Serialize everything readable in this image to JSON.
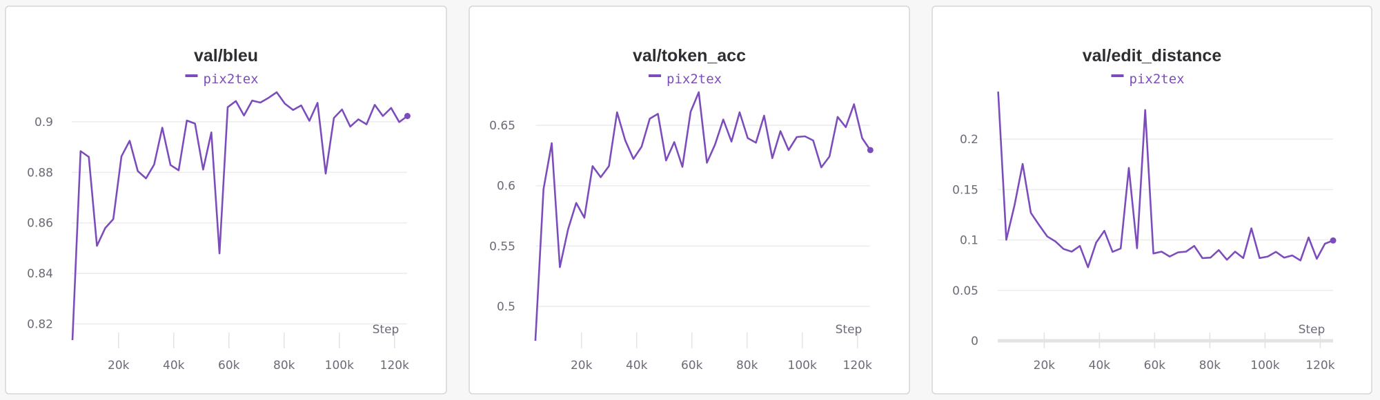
{
  "colors": {
    "series": "#7d4cbc",
    "background": "#f7f7f7",
    "panel": "#ffffff"
  },
  "chart_data": [
    {
      "type": "line",
      "title": "val/bleu",
      "xlabel": "Step",
      "ylabel": "",
      "legend": {
        "placement": "top-center",
        "entries": [
          "pix2tex"
        ]
      },
      "grid": true,
      "xlim": [
        3300,
        124660
      ],
      "ylim": [
        0.8136,
        0.9117
      ],
      "xticks": [
        20000,
        40000,
        60000,
        80000,
        100000,
        120000
      ],
      "xtick_labels": [
        "20k",
        "40k",
        "60k",
        "80k",
        "100k",
        "120k"
      ],
      "yticks": [
        0.82,
        0.84,
        0.86,
        0.88,
        0.9
      ],
      "ytick_labels": [
        "0.82",
        "0.84",
        "0.86",
        "0.88",
        "0.9"
      ],
      "series": [
        {
          "name": "pix2tex",
          "x": [
            3300,
            6260,
            9220,
            12180,
            15140,
            18100,
            21060,
            24020,
            26980,
            29940,
            32900,
            35860,
            38820,
            41780,
            44740,
            47700,
            50660,
            53620,
            56580,
            59540,
            62500,
            65460,
            68420,
            71380,
            74340,
            77300,
            80260,
            83220,
            86180,
            89140,
            92100,
            95060,
            98020,
            100980,
            103940,
            106900,
            109860,
            112820,
            115780,
            118740,
            121700,
            124660
          ],
          "y": [
            0.8136,
            0.8884,
            0.8861,
            0.8509,
            0.8579,
            0.8615,
            0.8863,
            0.8925,
            0.8805,
            0.8776,
            0.8831,
            0.8977,
            0.8829,
            0.8808,
            0.9005,
            0.8993,
            0.8811,
            0.8958,
            0.8479,
            0.9058,
            0.9082,
            0.9025,
            0.9084,
            0.9076,
            0.9095,
            0.9117,
            0.9072,
            0.9047,
            0.9065,
            0.9004,
            0.9075,
            0.8795,
            0.9015,
            0.9049,
            0.8981,
            0.901,
            0.899,
            0.9067,
            0.9023,
            0.9055,
            0.8999,
            0.9023
          ]
        }
      ]
    },
    {
      "type": "line",
      "title": "val/token_acc",
      "xlabel": "Step",
      "ylabel": "",
      "legend": {
        "placement": "top-center",
        "entries": [
          "pix2tex"
        ]
      },
      "grid": true,
      "xlim": [
        3300,
        124660
      ],
      "ylim": [
        0.4715,
        0.6774
      ],
      "xticks": [
        20000,
        40000,
        60000,
        80000,
        100000,
        120000
      ],
      "xtick_labels": [
        "20k",
        "40k",
        "60k",
        "80k",
        "100k",
        "120k"
      ],
      "yticks": [
        0.5,
        0.55,
        0.6,
        0.65
      ],
      "ytick_labels": [
        "0.5",
        "0.55",
        "0.6",
        "0.65"
      ],
      "series": [
        {
          "name": "pix2tex",
          "x": [
            3300,
            6260,
            9220,
            12180,
            15140,
            18100,
            21060,
            24020,
            26980,
            29940,
            32900,
            35860,
            38820,
            41780,
            44740,
            47700,
            50660,
            53620,
            56580,
            59540,
            62500,
            65460,
            68420,
            71380,
            74340,
            77300,
            80260,
            83220,
            86180,
            89140,
            92100,
            95060,
            98020,
            100980,
            103940,
            106900,
            109860,
            112820,
            115780,
            118740,
            121700,
            124660
          ],
          "y": [
            0.4715,
            0.5971,
            0.6352,
            0.5325,
            0.5639,
            0.5857,
            0.5734,
            0.6162,
            0.607,
            0.6162,
            0.6608,
            0.6376,
            0.6222,
            0.6323,
            0.6555,
            0.6595,
            0.6209,
            0.6361,
            0.6156,
            0.6612,
            0.6774,
            0.619,
            0.6342,
            0.6548,
            0.6365,
            0.6608,
            0.6394,
            0.6356,
            0.658,
            0.6228,
            0.6452,
            0.6295,
            0.6403,
            0.6409,
            0.6375,
            0.6152,
            0.6241,
            0.657,
            0.6485,
            0.6675,
            0.6394,
            0.6295
          ]
        }
      ]
    },
    {
      "type": "line",
      "title": "val/edit_distance",
      "xlabel": "Step",
      "ylabel": "",
      "legend": {
        "placement": "top-center",
        "entries": [
          "pix2tex"
        ]
      },
      "grid": true,
      "xlim": [
        3300,
        124660
      ],
      "ylim": [
        0,
        0.2472
      ],
      "xticks": [
        20000,
        40000,
        60000,
        80000,
        100000,
        120000
      ],
      "xtick_labels": [
        "20k",
        "40k",
        "60k",
        "80k",
        "100k",
        "120k"
      ],
      "yticks": [
        0,
        0.05,
        0.1,
        0.15,
        0.2
      ],
      "ytick_labels": [
        "0",
        "0.05",
        "0.1",
        "0.15",
        "0.2"
      ],
      "series": [
        {
          "name": "pix2tex",
          "x": [
            3300,
            6260,
            9220,
            12180,
            15140,
            18100,
            21060,
            24020,
            26980,
            29940,
            32900,
            35860,
            38820,
            41780,
            44740,
            47700,
            50660,
            53620,
            56580,
            59540,
            62500,
            65460,
            68420,
            71380,
            74340,
            77300,
            80260,
            83220,
            86180,
            89140,
            92100,
            95060,
            98020,
            100980,
            103940,
            106900,
            109860,
            112820,
            115780,
            118740,
            121700,
            124660
          ],
          "y": [
            0.2472,
            0.1002,
            0.1344,
            0.1754,
            0.1269,
            0.115,
            0.1036,
            0.0986,
            0.0911,
            0.0884,
            0.0941,
            0.0729,
            0.0975,
            0.1091,
            0.0882,
            0.0916,
            0.1715,
            0.0918,
            0.2289,
            0.0866,
            0.0884,
            0.0836,
            0.0877,
            0.0884,
            0.0941,
            0.082,
            0.0825,
            0.09,
            0.0804,
            0.0884,
            0.082,
            0.1116,
            0.082,
            0.0836,
            0.0882,
            0.0825,
            0.0847,
            0.0797,
            0.1025,
            0.0813,
            0.0963,
            0.0995
          ]
        }
      ]
    }
  ]
}
